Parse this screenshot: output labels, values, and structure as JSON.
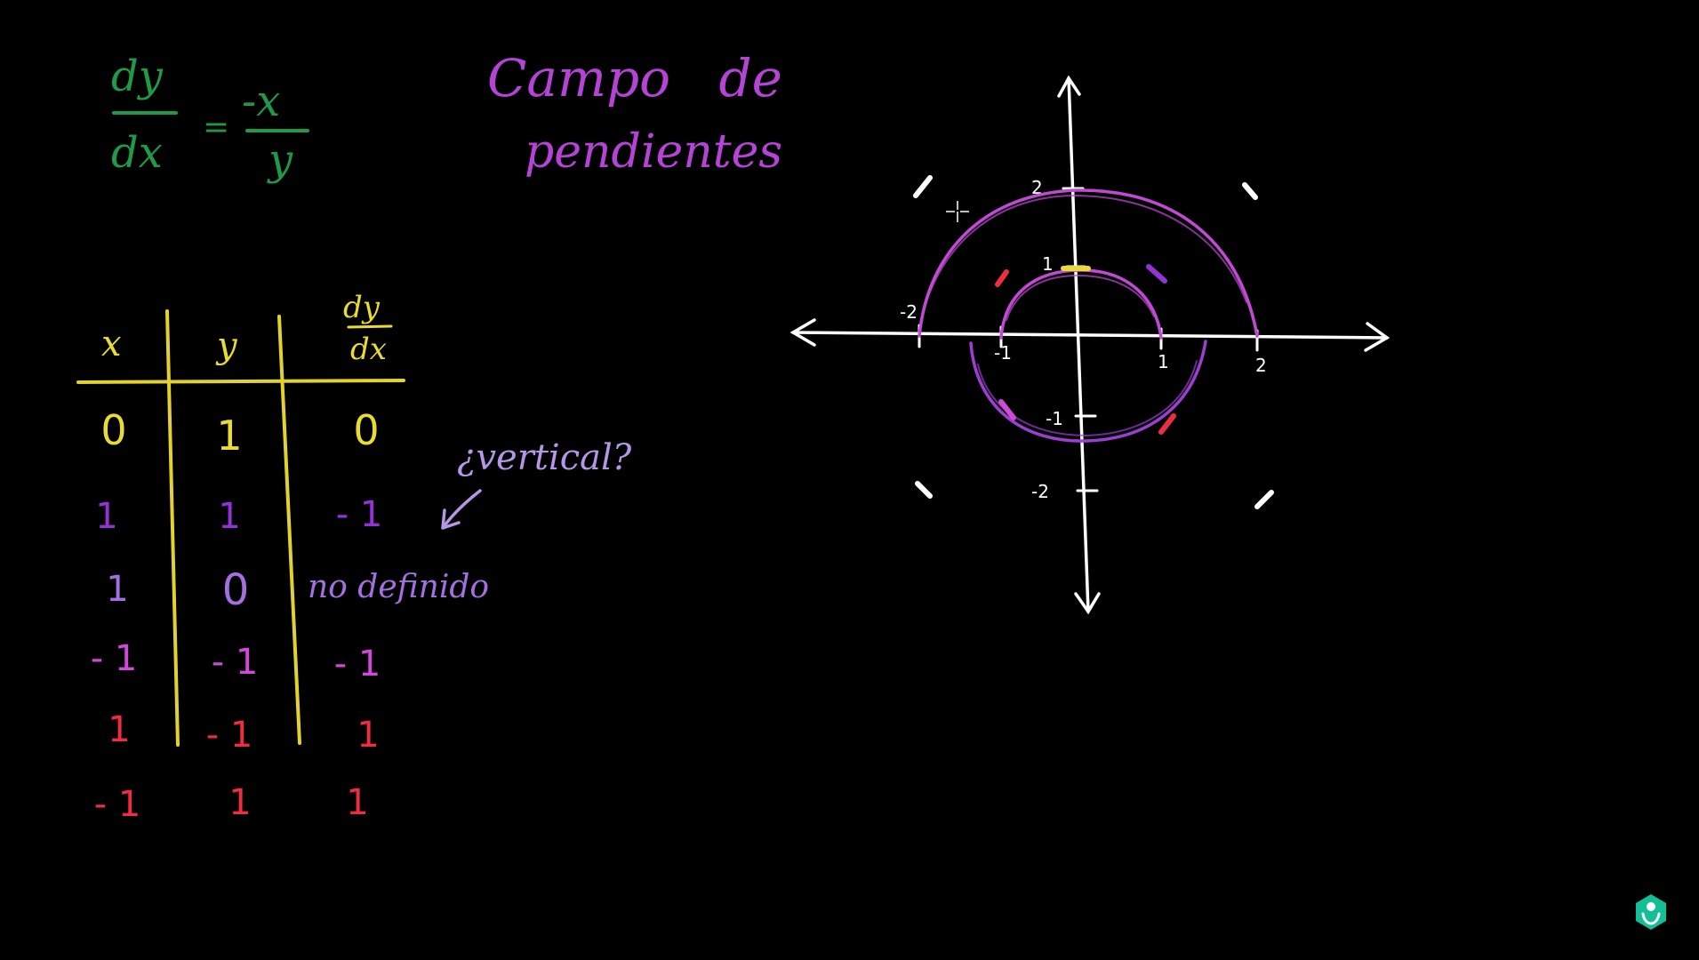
{
  "equation": {
    "lhs_num": "dy",
    "lhs_den": "dx",
    "equals": "=",
    "rhs_num": "-x",
    "rhs_den": "y",
    "color": "#1f9a48"
  },
  "title": {
    "line1": "Campo de",
    "line2": "pendientes",
    "color": "#b544d6"
  },
  "table": {
    "header_x": "x",
    "header_y": "y",
    "header_slope_num": "dy",
    "header_slope_den": "dx",
    "line_color": "#e2d12f",
    "rows": [
      {
        "x": "0",
        "y": "1",
        "slope": "0",
        "color_x": "#e8dc33",
        "color_y": "#e8dc33",
        "color_slope": "#e8dc33"
      },
      {
        "x": "1",
        "y": "1",
        "slope": "- 1",
        "color_x": "#9233d6",
        "color_y": "#9233d6",
        "color_slope": "#9233d6"
      },
      {
        "x": "1",
        "y": "0",
        "slope": "no definido",
        "color_x": "#a370e0",
        "color_y": "#a370e0",
        "color_slope": "#a370e0"
      },
      {
        "x": "- 1",
        "y": "- 1",
        "slope": "- 1",
        "color_x": "#d04ad8",
        "color_y": "#d04ad8",
        "color_slope": "#d04ad8"
      },
      {
        "x": "1",
        "y": "- 1",
        "slope": "1",
        "color_x": "#ee2d40",
        "color_y": "#ee2d40",
        "color_slope": "#ee2d40"
      },
      {
        "x": "- 1",
        "y": "1",
        "slope": "1",
        "color_x": "#ee2d40",
        "color_y": "#ee2d40",
        "color_slope": "#ee2d40"
      }
    ]
  },
  "annotation": {
    "text": "¿vertical?",
    "color": "#b497e6"
  },
  "axes": {
    "x_ticks": [
      "-2",
      "-1",
      "1",
      "2"
    ],
    "y_ticks": [
      "2",
      "1",
      "-1",
      "-2"
    ],
    "color": "#ffffff"
  },
  "curves_color": "#c04ad4",
  "logo_icon": "khan-academy-hexagon-icon"
}
